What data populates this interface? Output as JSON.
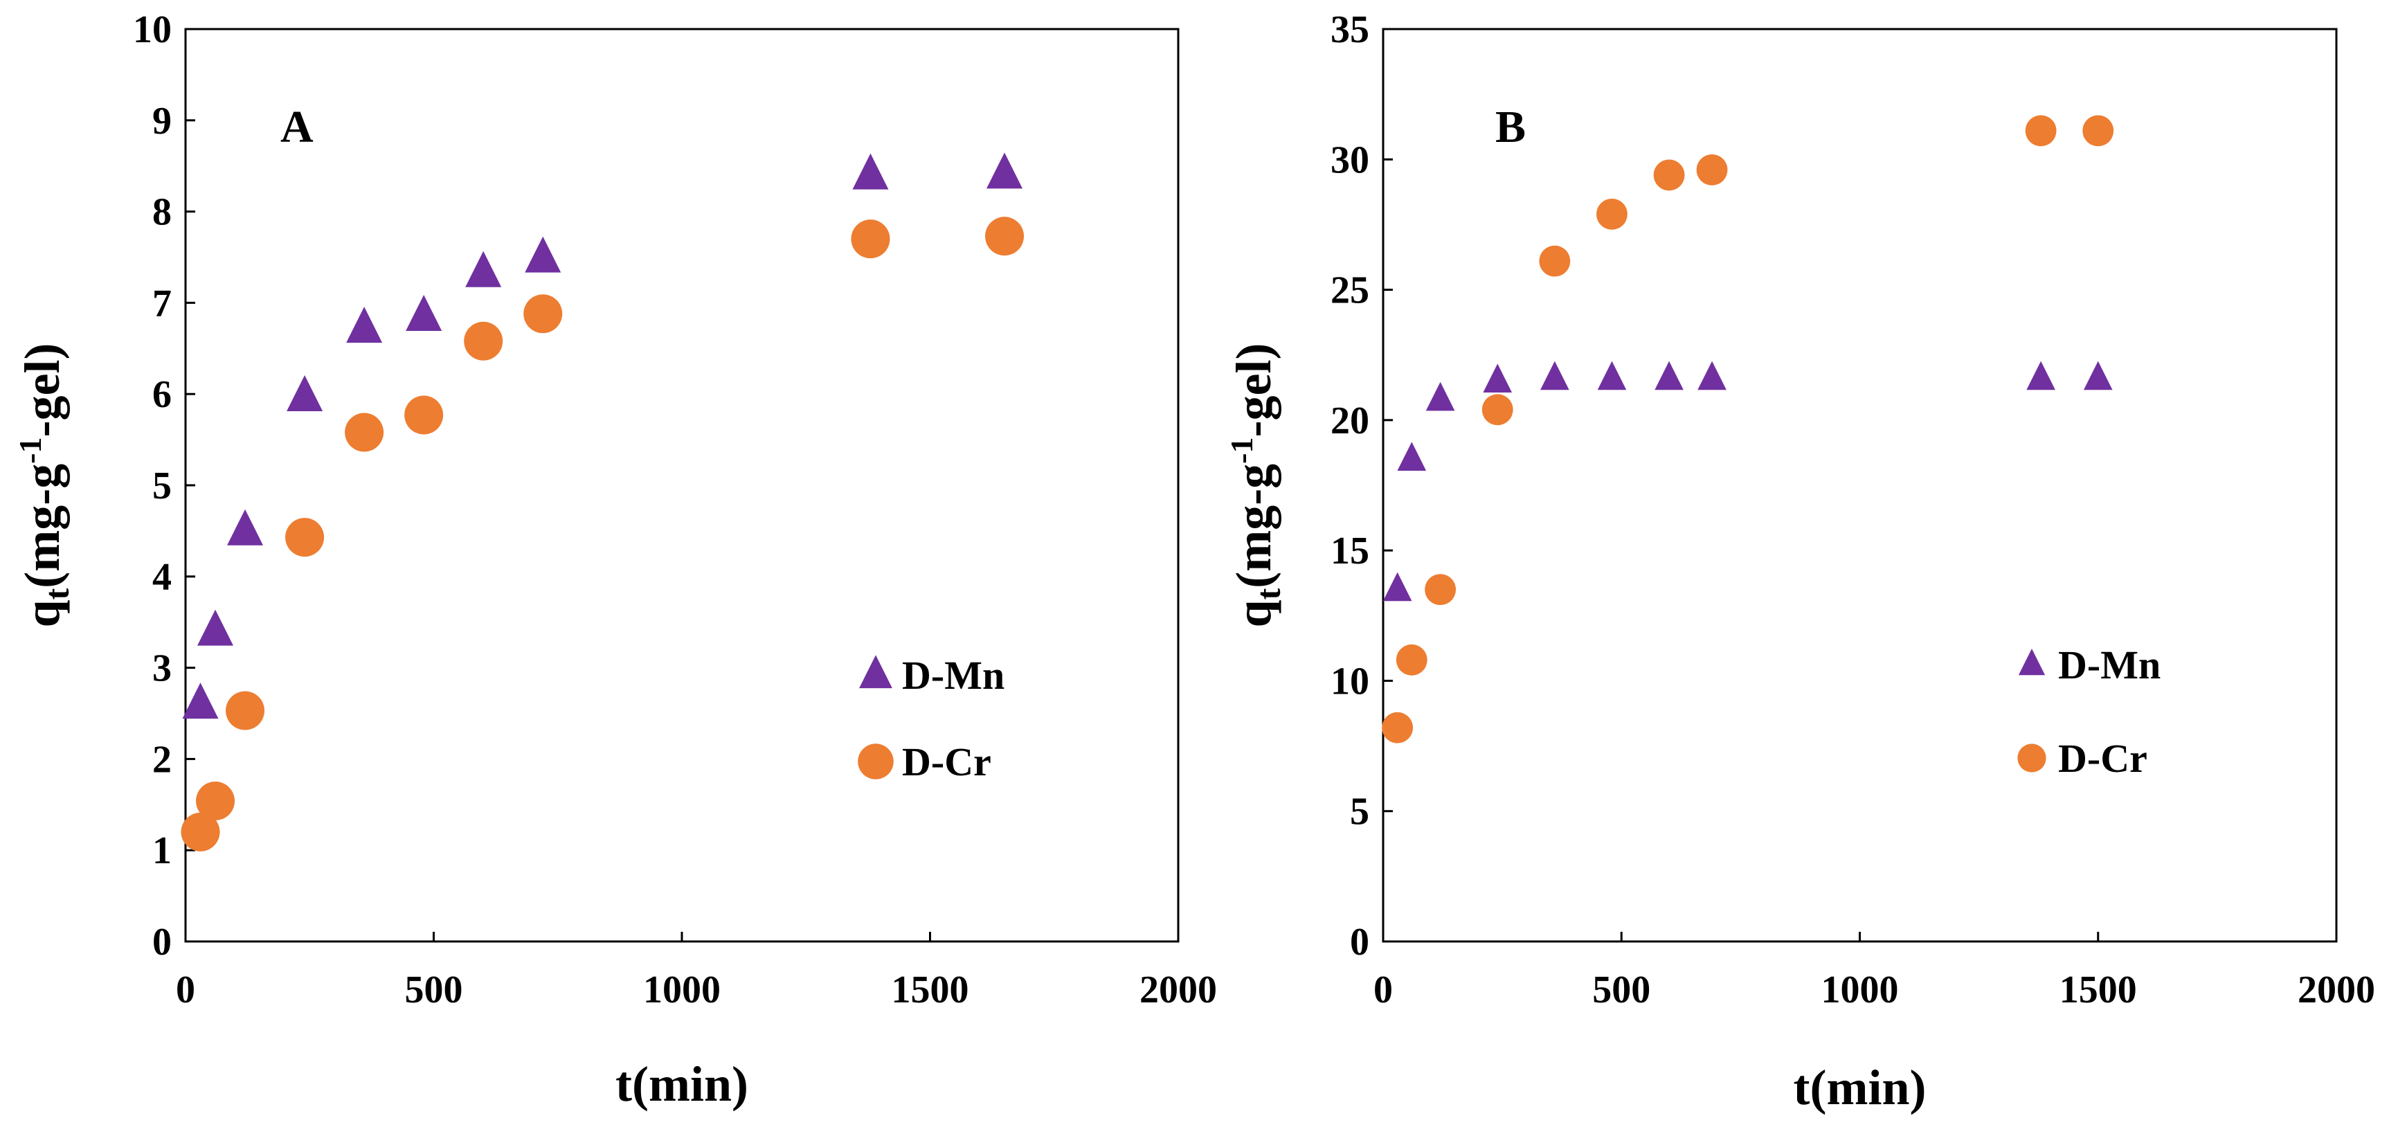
{
  "colors": {
    "mn": "#7030A0",
    "cr": "#ED7D31",
    "axis": "#000000",
    "background": "#FFFFFF"
  },
  "chart_data": [
    {
      "type": "scatter",
      "panel_label": "A",
      "xlabel": "t(min)",
      "ylabel": {
        "main": "q",
        "sub": "t",
        "part1": "(mg-g",
        "sup": "-1",
        "part2": "-gel)"
      },
      "xlim": [
        0,
        2000
      ],
      "ylim": [
        0,
        10
      ],
      "xticks": [
        0,
        500,
        1000,
        1500,
        2000
      ],
      "yticks": [
        0,
        1,
        2,
        3,
        4,
        5,
        6,
        7,
        8,
        9,
        10
      ],
      "xtick_labels": [
        "0",
        "500",
        "1000",
        "1500",
        "2000"
      ],
      "ytick_labels": [
        "0",
        "1",
        "2",
        "3",
        "4",
        "5",
        "6",
        "7",
        "8",
        "9",
        "10"
      ],
      "legend_position": "right-middle",
      "series": [
        {
          "name": "D-Mn",
          "marker": "triangle",
          "x": [
            30,
            60,
            120,
            240,
            360,
            480,
            600,
            720,
            1380,
            1650
          ],
          "y": [
            2.6,
            3.4,
            4.5,
            5.97,
            6.72,
            6.85,
            7.33,
            7.49,
            8.4,
            8.41
          ]
        },
        {
          "name": "D-Cr",
          "marker": "circle",
          "x": [
            30,
            60,
            120,
            240,
            360,
            480,
            600,
            720,
            1380,
            1650
          ],
          "y": [
            1.2,
            1.54,
            2.53,
            4.43,
            5.58,
            5.77,
            6.58,
            6.88,
            7.7,
            7.73
          ]
        }
      ]
    },
    {
      "type": "scatter",
      "panel_label": "B",
      "xlabel": "t(min)",
      "ylabel": {
        "main": "q",
        "sub": "t",
        "part1": "(mg-g",
        "sup": "-1",
        "part2": "-gel)"
      },
      "xlim": [
        0,
        2000
      ],
      "ylim": [
        0,
        35
      ],
      "xticks": [
        0,
        500,
        1000,
        1500,
        2000
      ],
      "yticks": [
        0,
        5,
        10,
        15,
        20,
        25,
        30,
        35
      ],
      "xtick_labels": [
        "0",
        "500",
        "1000",
        "1500",
        "2000"
      ],
      "ytick_labels": [
        "0",
        "5",
        "10",
        "15",
        "20",
        "25",
        "30",
        "35"
      ],
      "legend_position": "right-middle",
      "series": [
        {
          "name": "D-Mn",
          "marker": "triangle",
          "x": [
            30,
            60,
            120,
            240,
            360,
            480,
            600,
            690,
            1380,
            1500
          ],
          "y": [
            13.5,
            18.5,
            20.8,
            21.5,
            21.6,
            21.6,
            21.6,
            21.6,
            21.6,
            21.6
          ]
        },
        {
          "name": "D-Cr",
          "marker": "circle",
          "x": [
            30,
            60,
            120,
            240,
            360,
            480,
            600,
            690,
            1380,
            1500
          ],
          "y": [
            8.2,
            10.8,
            13.5,
            20.4,
            26.1,
            27.9,
            29.4,
            29.6,
            31.1,
            31.1
          ]
        }
      ]
    }
  ]
}
